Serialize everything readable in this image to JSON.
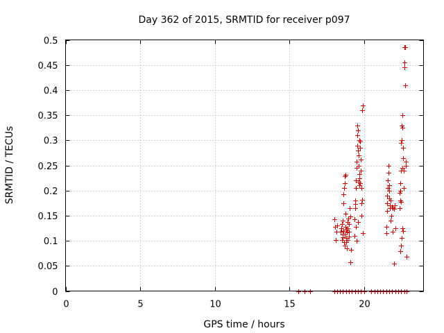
{
  "chart_data": {
    "type": "scatter",
    "title": "Day 362 of 2015, SRMTID for receiver p097",
    "xlabel": "GPS time / hours",
    "ylabel": "SRMTID / TECUs",
    "xlim": [
      0,
      24
    ],
    "ylim": [
      0,
      0.5
    ],
    "xticks": [
      0,
      5,
      10,
      15,
      20
    ],
    "xtick_labels": [
      "0",
      "5",
      "10",
      "15",
      "20"
    ],
    "yticks": [
      0,
      0.05,
      0.1,
      0.15,
      0.2,
      0.25,
      0.3,
      0.35,
      0.4,
      0.45,
      0.5
    ],
    "ytick_labels": [
      "0",
      "0.05",
      "0.1",
      "0.15",
      "0.2",
      "0.25",
      "0.3",
      "0.35",
      "0.4",
      "0.45",
      "0.5"
    ],
    "grid": true,
    "marker": "+",
    "marker_color": "#dd0000",
    "series": [
      {
        "name": "p097",
        "points": [
          [
            15.6,
            0
          ],
          [
            16.0,
            0
          ],
          [
            16.4,
            0
          ],
          [
            18.0,
            0
          ],
          [
            18.2,
            0
          ],
          [
            18.4,
            0
          ],
          [
            18.6,
            0
          ],
          [
            18.8,
            0
          ],
          [
            19.0,
            0
          ],
          [
            19.2,
            0
          ],
          [
            19.4,
            0
          ],
          [
            19.6,
            0
          ],
          [
            19.8,
            0
          ],
          [
            20.0,
            0
          ],
          [
            20.5,
            0
          ],
          [
            20.7,
            0
          ],
          [
            20.9,
            0
          ],
          [
            21.1,
            0
          ],
          [
            21.3,
            0
          ],
          [
            21.5,
            0
          ],
          [
            21.7,
            0
          ],
          [
            21.9,
            0
          ],
          [
            22.1,
            0
          ],
          [
            22.3,
            0
          ],
          [
            22.5,
            0
          ],
          [
            22.7,
            0
          ],
          [
            22.85,
            0
          ],
          [
            18.0,
            0.143
          ],
          [
            18.05,
            0.128
          ],
          [
            18.1,
            0.102
          ],
          [
            18.15,
            0.118
          ],
          [
            18.2,
            0.131
          ],
          [
            18.45,
            0.118
          ],
          [
            18.5,
            0.125
          ],
          [
            18.55,
            0.133
          ],
          [
            18.6,
            0.14
          ],
          [
            18.62,
            0.175
          ],
          [
            18.65,
            0.192
          ],
          [
            18.68,
            0.205
          ],
          [
            18.7,
            0.228
          ],
          [
            18.72,
            0.215
          ],
          [
            18.75,
            0.232
          ],
          [
            18.58,
            0.112
          ],
          [
            18.6,
            0.107
          ],
          [
            18.63,
            0.12
          ],
          [
            18.66,
            0.098
          ],
          [
            18.7,
            0.09
          ],
          [
            18.73,
            0.113
          ],
          [
            18.76,
            0.128
          ],
          [
            18.8,
            0.105
          ],
          [
            18.83,
            0.098
          ],
          [
            18.86,
            0.085
          ],
          [
            18.88,
            0.117
          ],
          [
            18.9,
            0.102
          ],
          [
            18.93,
            0.125
          ],
          [
            18.96,
            0.145
          ],
          [
            18.98,
            0.118
          ],
          [
            19.0,
            0.133
          ],
          [
            19.02,
            0.108
          ],
          [
            19.05,
            0.165
          ],
          [
            19.08,
            0.148
          ],
          [
            18.9,
            0.138
          ],
          [
            19.1,
            0.058
          ],
          [
            19.12,
            0.082
          ],
          [
            18.55,
            0.102
          ],
          [
            18.78,
            0.154
          ],
          [
            18.82,
            0.122
          ],
          [
            19.35,
            0.11
          ],
          [
            19.38,
            0.143
          ],
          [
            19.4,
            0.165
          ],
          [
            19.42,
            0.18
          ],
          [
            19.44,
            0.173
          ],
          [
            19.46,
            0.205
          ],
          [
            19.48,
            0.22
          ],
          [
            19.5,
            0.245
          ],
          [
            19.52,
            0.258
          ],
          [
            19.54,
            0.29
          ],
          [
            19.56,
            0.31
          ],
          [
            19.58,
            0.33
          ],
          [
            19.6,
            0.32
          ],
          [
            19.62,
            0.28
          ],
          [
            19.64,
            0.27
          ],
          [
            19.66,
            0.25
          ],
          [
            19.68,
            0.225
          ],
          [
            19.7,
            0.21
          ],
          [
            19.72,
            0.3
          ],
          [
            19.74,
            0.298
          ],
          [
            19.76,
            0.285
          ],
          [
            19.78,
            0.24
          ],
          [
            19.8,
            0.262
          ],
          [
            19.82,
            0.205
          ],
          [
            19.84,
            0.175
          ],
          [
            19.86,
            0.15
          ],
          [
            19.88,
            0.182
          ],
          [
            19.9,
            0.36
          ],
          [
            19.92,
            0.37
          ],
          [
            19.94,
            0.115
          ],
          [
            19.5,
            0.1
          ],
          [
            19.6,
            0.138
          ],
          [
            19.45,
            0.128
          ],
          [
            19.7,
            0.233
          ],
          [
            19.75,
            0.215
          ],
          [
            19.65,
            0.218
          ],
          [
            21.5,
            0.128
          ],
          [
            21.52,
            0.115
          ],
          [
            21.54,
            0.16
          ],
          [
            21.56,
            0.175
          ],
          [
            21.58,
            0.19
          ],
          [
            21.6,
            0.205
          ],
          [
            21.62,
            0.22
          ],
          [
            21.64,
            0.235
          ],
          [
            21.66,
            0.25
          ],
          [
            21.68,
            0.21
          ],
          [
            21.7,
            0.2
          ],
          [
            21.72,
            0.185
          ],
          [
            21.74,
            0.17
          ],
          [
            21.76,
            0.165
          ],
          [
            21.78,
            0.18
          ],
          [
            21.8,
            0.14
          ],
          [
            21.9,
            0.168
          ],
          [
            21.95,
            0.165
          ],
          [
            22.0,
            0.163
          ],
          [
            22.05,
            0.17
          ],
          [
            22.1,
            0.125
          ],
          [
            21.95,
            0.118
          ],
          [
            22.0,
            0.055
          ],
          [
            21.85,
            0.15
          ],
          [
            22.4,
            0.165
          ],
          [
            22.42,
            0.18
          ],
          [
            22.44,
            0.2
          ],
          [
            22.46,
            0.215
          ],
          [
            22.48,
            0.24
          ],
          [
            22.5,
            0.295
          ],
          [
            22.52,
            0.3
          ],
          [
            22.54,
            0.33
          ],
          [
            22.56,
            0.325
          ],
          [
            22.58,
            0.35
          ],
          [
            22.6,
            0.245
          ],
          [
            22.62,
            0.285
          ],
          [
            22.64,
            0.265
          ],
          [
            22.66,
            0.24
          ],
          [
            22.68,
            0.205
          ],
          [
            22.7,
            0.455
          ],
          [
            22.72,
            0.445
          ],
          [
            22.74,
            0.485
          ],
          [
            22.76,
            0.485
          ],
          [
            22.78,
            0.41
          ],
          [
            22.8,
            0.258
          ],
          [
            22.82,
            0.25
          ],
          [
            22.84,
            0.068
          ],
          [
            22.6,
            0.125
          ],
          [
            22.55,
            0.105
          ],
          [
            22.5,
            0.09
          ],
          [
            22.45,
            0.08
          ],
          [
            22.65,
            0.12
          ],
          [
            22.4,
            0.195
          ],
          [
            22.48,
            0.178
          ]
        ]
      }
    ]
  }
}
